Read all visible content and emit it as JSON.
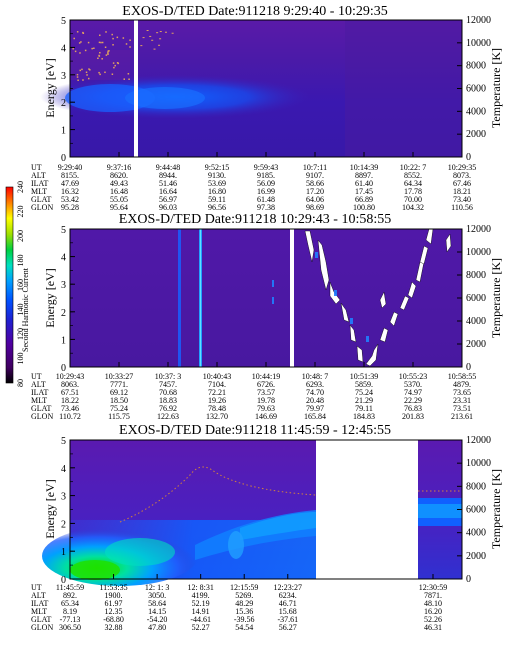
{
  "colorbar": {
    "label": "Second Harmonic Current",
    "ticks": [
      "240",
      "220",
      "200",
      "180",
      "160",
      "140",
      "120",
      "100",
      "80"
    ]
  },
  "panels": [
    {
      "title": "EXOS-D/TED   Date:911218  9:29:40 - 10:29:35",
      "ylabel": "Energy [eV]",
      "y2label": "Temperature [K]",
      "yticks": [
        "0",
        "1",
        "2",
        "3",
        "4",
        "5"
      ],
      "y2ticks": [
        "0",
        "2000",
        "4000",
        "6000",
        "8000",
        "10000",
        "12000"
      ],
      "row_labels": [
        "UT",
        "ALT",
        "ILAT",
        "MLT",
        "GLAT",
        "GLON"
      ],
      "columns": [
        [
          "9:29:40",
          "8155.",
          "47.69",
          "16.32",
          "53.42",
          "95.28"
        ],
        [
          "9:37:16",
          "8620.",
          "49.43",
          "16.48",
          "55.05",
          "95.64"
        ],
        [
          "9:44:48",
          "8944.",
          "51.46",
          "16.64",
          "56.97",
          "96.03"
        ],
        [
          "9:52:15",
          "9130.",
          "53.69",
          "16.80",
          "59.11",
          "96.56"
        ],
        [
          "9:59:43",
          "9185.",
          "56.09",
          "16.99",
          "61.48",
          "97.38"
        ],
        [
          "10:7:11",
          "9107.",
          "58.66",
          "17.20",
          "64.06",
          "98.69"
        ],
        [
          "10:14:39",
          "8897.",
          "61.40",
          "17.45",
          "66.89",
          "100.80"
        ],
        [
          "10:22: 7",
          "8552.",
          "64.34",
          "17.78",
          "70.00",
          "104.32"
        ],
        [
          "10:29:35",
          "8073.",
          "67.46",
          "18.21",
          "73.40",
          "110.56"
        ]
      ]
    },
    {
      "title": "EXOS-D/TED   Date:911218  10:29:43 - 10:58:55",
      "ylabel": "Energy [eV]",
      "y2label": "Temperature [K]",
      "yticks": [
        "0",
        "1",
        "2",
        "3",
        "4",
        "5"
      ],
      "y2ticks": [
        "0",
        "2000",
        "4000",
        "6000",
        "8000",
        "10000",
        "12000"
      ],
      "row_labels": [
        "UT",
        "ALT",
        "ILAT",
        "MLT",
        "GLAT",
        "GLON"
      ],
      "columns": [
        [
          "10:29:43",
          "8063.",
          "67.51",
          "18.22",
          "73.46",
          "110.72"
        ],
        [
          "10:33:27",
          "7771.",
          "69.12",
          "18.50",
          "75.24",
          "115.75"
        ],
        [
          "10:37: 3",
          "7457.",
          "70.68",
          "18.83",
          "76.92",
          "122.63"
        ],
        [
          "10:40:43",
          "7104.",
          "72.21",
          "19.26",
          "78.48",
          "132.70"
        ],
        [
          "10:44:19",
          "6726.",
          "73.57",
          "19.78",
          "79.63",
          "146.69"
        ],
        [
          "10:48: 7",
          "6293.",
          "74.70",
          "20.48",
          "79.97",
          "165.84"
        ],
        [
          "10:51:39",
          "5859.",
          "75.24",
          "21.29",
          "79.11",
          "184.83"
        ],
        [
          "10:55:23",
          "5370.",
          "74.97",
          "22.29",
          "76.83",
          "201.83"
        ],
        [
          "10:58:55",
          "4879.",
          "73.65",
          "23.31",
          "73.51",
          "213.61"
        ]
      ]
    },
    {
      "title": "EXOS-D/TED   Date:911218  11:45:59 - 12:45:55",
      "ylabel": "Energy [eV]",
      "y2label": "Temperature [K]",
      "yticks": [
        "0",
        "1",
        "2",
        "3",
        "4",
        "5"
      ],
      "y2ticks": [
        "0",
        "2000",
        "4000",
        "6000",
        "8000",
        "10000",
        "12000"
      ],
      "row_labels": [
        "UT",
        "ALT",
        "ILAT",
        "MLT",
        "GLAT",
        "GLON"
      ],
      "columns": [
        [
          "11:45:59",
          "892.",
          "65.34",
          "8.19",
          "-77.13",
          "306.50"
        ],
        [
          "11:53:35",
          "1900.",
          "61.97",
          "12.35",
          "-68.80",
          "32.88"
        ],
        [
          "12: 1: 3",
          "3050.",
          "58.64",
          "14.15",
          "-54.20",
          "47.80"
        ],
        [
          "12: 8:31",
          "4199.",
          "52.19",
          "14.91",
          "-44.61",
          "52.27"
        ],
        [
          "12:15:59",
          "5269.",
          "48.29",
          "15.36",
          "-39.56",
          "54.54"
        ],
        [
          "12:23:27",
          "6234.",
          "46.71",
          "15.68",
          "-37.61",
          "56.27"
        ],
        [
          "12:30:59",
          "7871.",
          "48.10",
          "16.20",
          "52.26",
          "46.31"
        ]
      ]
    }
  ],
  "chart_data": [
    {
      "type": "heatmap",
      "title": "EXOS-D/TED   Date:911218  9:29:40 - 10:29:35",
      "ylabel": "Energy [eV]",
      "y2label": "Temperature [K]",
      "ylim": [
        0,
        5
      ],
      "y2lim": [
        0,
        12000
      ],
      "x": [
        "9:29:40",
        "9:37:16",
        "9:44:48",
        "9:52:15",
        "9:59:43",
        "10:7:11",
        "10:14:39",
        "10:22: 7",
        "10:29:35"
      ]
    },
    {
      "type": "heatmap",
      "title": "EXOS-D/TED   Date:911218  10:29:43 - 10:58:55",
      "ylabel": "Energy [eV]",
      "y2label": "Temperature [K]",
      "ylim": [
        0,
        5
      ],
      "y2lim": [
        0,
        12000
      ],
      "x": [
        "10:29:43",
        "10:33:27",
        "10:37: 3",
        "10:40:43",
        "10:44:19",
        "10:48: 7",
        "10:51:39",
        "10:55:23",
        "10:58:55"
      ]
    },
    {
      "type": "heatmap",
      "title": "EXOS-D/TED   Date:911218  11:45:59 - 12:45:55",
      "ylabel": "Energy [eV]",
      "y2label": "Temperature [K]",
      "ylim": [
        0,
        5
      ],
      "y2lim": [
        0,
        12000
      ],
      "x": [
        "11:45:59",
        "11:53:35",
        "12: 1: 3",
        "12: 8:31",
        "12:15:59",
        "12:23:27",
        "12:30:59"
      ]
    }
  ]
}
